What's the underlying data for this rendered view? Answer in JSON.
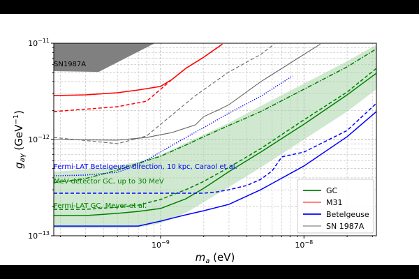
{
  "chart_data": {
    "type": "line",
    "title": "",
    "xlabel": "m_a (eV)",
    "xlabel_main": "m",
    "xlabel_sub": "a",
    "xlabel_unit": " (eV)",
    "ylabel_main": "g",
    "ylabel_sub": "aγ",
    "ylabel_unit": " (GeV",
    "ylabel_exp": "−1",
    "ylabel_close": ")",
    "xscale": "log",
    "yscale": "log",
    "xlim": [
      1.8e-10,
      3.2e-08
    ],
    "ylim": [
      1e-13,
      1e-11
    ],
    "grid": true,
    "x_ticks": [
      {
        "value": 1e-09,
        "base": "10",
        "exp": "−9"
      },
      {
        "value": 1e-08,
        "base": "10",
        "exp": "−8"
      }
    ],
    "y_ticks": [
      {
        "value": 1e-11,
        "base": "10",
        "exp": "−11"
      },
      {
        "value": 1e-12,
        "base": "10",
        "exp": "−12"
      },
      {
        "value": 1e-13,
        "base": "10",
        "exp": "−13"
      }
    ],
    "legend": {
      "placement": "lower-right",
      "entries": [
        {
          "label": "GC",
          "color": "#008000"
        },
        {
          "label": "M31",
          "color": "#ff0000"
        },
        {
          "label": "Betelgeuse",
          "color": "#0000ff"
        },
        {
          "label": "SN 1987A",
          "color": "#666666"
        }
      ]
    },
    "annotations": [
      {
        "text": "SN1987A",
        "color": "#000000"
      },
      {
        "text": "Fermi-LAT Betelgeuse direction, 10 kpc, Caraol et al.",
        "color": "#0000ff"
      },
      {
        "text": "MeV-detector GC, up to 30 MeV",
        "color": "#008000"
      },
      {
        "text": "Fermi-LAT GC, Meyer et al.",
        "color": "#008000"
      }
    ],
    "regions": [
      {
        "name": "sn1987a-excluded",
        "color": "#808080",
        "x": [
          1.8e-10,
          9.1e-10,
          3.7e-10,
          1.8e-10
        ],
        "y": [
          1e-11,
          1e-11,
          5.04e-12,
          5.13e-12
        ]
      }
    ],
    "bands": [
      {
        "name": "gc-band",
        "color": "#a8d5a8",
        "x": [
          1.8e-10,
          3e-10,
          5e-10,
          7e-10,
          1e-09,
          1.5e-09,
          2e-09,
          3e-09,
          5e-09,
          1e-08,
          2e-08,
          3.2e-08
        ],
        "upper": [
          4.64e-13,
          4.88e-13,
          5.31e-13,
          5.86e-13,
          6.93e-13,
          9.2e-13,
          1.12e-12,
          1.49e-12,
          2.23e-12,
          3.8e-12,
          6.49e-12,
          9.68e-12
        ],
        "lower": [
          1.2e-13,
          1.2e-13,
          1.2e-13,
          1.22e-13,
          1.35e-13,
          1.73e-13,
          2.23e-13,
          3.21e-13,
          5.13e-13,
          1e-12,
          1.95e-12,
          3.33e-12
        ]
      }
    ],
    "series": [
      {
        "name": "GC solid",
        "color": "#008000",
        "style": "solid",
        "x": [
          1.8e-10,
          3e-10,
          5e-10,
          7e-10,
          1e-09,
          1.5e-09,
          2e-09,
          3e-09,
          5e-09,
          1e-08,
          2e-08,
          3.2e-08
        ],
        "y": [
          1.62e-13,
          1.62e-13,
          1.71e-13,
          1.79e-13,
          1.92e-13,
          2.42e-13,
          3.11e-13,
          4.64e-13,
          7.41e-13,
          1.44e-12,
          2.91e-12,
          4.88e-12
        ]
      },
      {
        "name": "GC dashed",
        "color": "#008000",
        "style": "dashed",
        "x": [
          1.8e-10,
          3e-10,
          5e-10,
          7e-10,
          1e-09,
          1.5e-09,
          2e-09,
          3e-09,
          5e-09,
          1e-08,
          2e-08,
          3.2e-08
        ],
        "y": [
          1.88e-13,
          1.88e-13,
          1.98e-13,
          2.08e-13,
          2.38e-13,
          3.01e-13,
          3.67e-13,
          5.13e-13,
          8.05e-13,
          1.6e-12,
          3.11e-12,
          5.48e-12
        ]
      },
      {
        "name": "GC dashdot",
        "color": "#008000",
        "style": "dashdot",
        "x": [
          1.8e-10,
          3e-10,
          5e-10,
          7e-10,
          1e-09,
          1.5e-09,
          2e-09,
          3e-09,
          5e-09,
          1e-08,
          2e-08,
          3.2e-08
        ],
        "y": [
          3.56e-13,
          3.93e-13,
          4.8e-13,
          5.68e-13,
          6.7e-13,
          8.75e-13,
          1.07e-12,
          1.4e-12,
          1.95e-12,
          3.33e-12,
          5.68e-12,
          8.75e-12
        ]
      },
      {
        "name": "Betelgeuse solid",
        "color": "#0000ff",
        "style": "solid",
        "x": [
          1.8e-10,
          3e-10,
          5e-10,
          7e-10,
          1e-09,
          1.5e-09,
          2e-09,
          3e-09,
          5e-09,
          1e-08,
          2e-08,
          3.2e-08
        ],
        "y": [
          1.26e-13,
          1.26e-13,
          1.26e-13,
          1.26e-13,
          1.42e-13,
          1.65e-13,
          1.82e-13,
          2.12e-13,
          3.01e-13,
          5.31e-13,
          1.07e-12,
          1.95e-12
        ]
      },
      {
        "name": "Betelgeuse dashed",
        "color": "#0000ff",
        "style": "dashed",
        "x": [
          1.8e-10,
          1e-09,
          2e-09,
          2.5e-09,
          3e-09,
          4e-09,
          5e-09,
          6e-09,
          7e-09,
          1e-08,
          2e-08,
          3.2e-08
        ],
        "y": [
          2.77e-13,
          2.77e-13,
          2.77e-13,
          2.86e-13,
          3.01e-13,
          3.33e-13,
          3.86e-13,
          4.72e-13,
          6.59e-13,
          7.41e-13,
          1.24e-12,
          2.38e-12
        ]
      },
      {
        "name": "Betelgeuse dotted",
        "color": "#0000ff",
        "style": "dotted",
        "x": [
          1.8e-10,
          3e-10,
          5e-10,
          7e-10,
          1e-09,
          1.5e-09,
          2e-09,
          3e-09,
          5e-09,
          8.3e-09
        ],
        "y": [
          4.2e-13,
          4.27e-13,
          4.56e-13,
          5.48e-13,
          7.41e-13,
          1.05e-12,
          1.33e-12,
          1.88e-12,
          2.81e-12,
          4.56e-12
        ]
      },
      {
        "name": "M31 solid",
        "color": "#ff0000",
        "style": "solid",
        "x": [
          1.8e-10,
          3e-10,
          5e-10,
          7e-10,
          1e-09,
          1.2e-09,
          1.5e-09,
          2e-09,
          2.7e-09
        ],
        "y": [
          2.86e-12,
          2.91e-12,
          3.06e-12,
          3.27e-12,
          3.56e-12,
          4.2e-12,
          5.48e-12,
          7.16e-12,
          9.8e-12
        ]
      },
      {
        "name": "M31 dashed",
        "color": "#ff0000",
        "style": "dashed",
        "x": [
          1.8e-10,
          5e-10,
          8e-10,
          1.2e-09,
          1.5e-09,
          2e-09,
          2.7e-09
        ],
        "y": [
          1.95e-12,
          2.19e-12,
          2.5e-12,
          4.2e-12,
          5.48e-12,
          7.16e-12,
          9.8e-12
        ]
      },
      {
        "name": "SN 1987A solid",
        "color": "#666666",
        "style": "solid",
        "x": [
          1.8e-10,
          5e-10,
          8e-10,
          1.2e-09,
          1.75e-09,
          2e-09,
          2.5e-09,
          3e-09,
          5e-09,
          1e-08,
          1.3e-08
        ],
        "y": [
          1e-12,
          9.84e-13,
          1.05e-12,
          1.18e-12,
          1.42e-12,
          1.73e-12,
          2.01e-12,
          2.3e-12,
          3.99e-12,
          7.66e-12,
          9.8e-12
        ]
      },
      {
        "name": "SN 1987A dashed",
        "color": "#666666",
        "style": "dashed",
        "x": [
          1.8e-10,
          5e-10,
          8e-10,
          1.75e-09,
          3e-09,
          5e-09,
          6.2e-09
        ],
        "y": [
          1.05e-12,
          9.05e-13,
          1.09e-12,
          2.86e-12,
          5.04e-12,
          7.66e-12,
          9.8e-12
        ]
      }
    ]
  }
}
